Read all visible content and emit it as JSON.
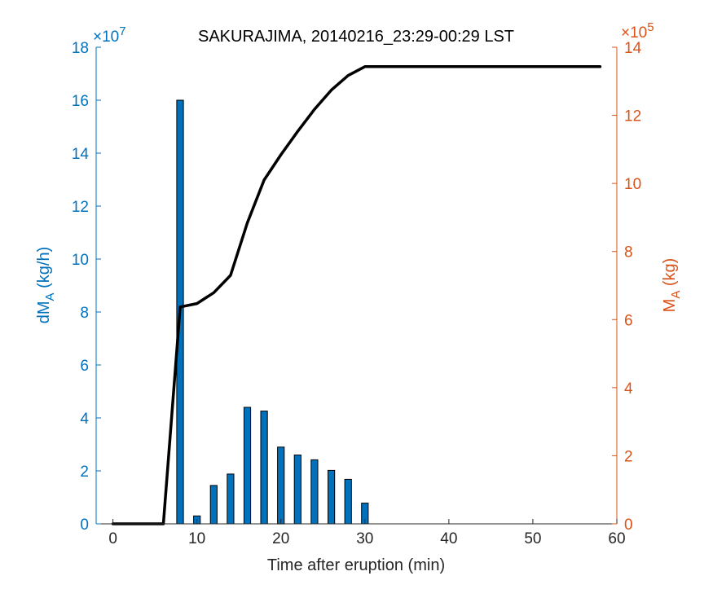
{
  "colors": {
    "left_axis": "#0072BD",
    "right_axis": "#D95319",
    "bars": "#0072BD",
    "line": "#000000"
  },
  "chart_data": {
    "type": "bar",
    "title": "SAKURAJIMA, 20140216_23:29-00:29 LST",
    "xlabel": "Time after eruption (min)",
    "ylabel_left": {
      "main": "dM",
      "sub": "A",
      "unit": " (kg/h)"
    },
    "ylabel_right": {
      "main": "M",
      "sub": "A",
      "unit": " (kg)"
    },
    "left_exponent": {
      "prefix": "×10",
      "power": "7"
    },
    "right_exponent": {
      "prefix": "×10",
      "power": "5"
    },
    "xlim": [
      -2,
      60
    ],
    "ylim_left": [
      0,
      18
    ],
    "ylim_right": [
      0,
      14
    ],
    "xticks": [
      0,
      10,
      20,
      30,
      40,
      50,
      60
    ],
    "yticks_left": [
      0,
      2,
      4,
      6,
      8,
      10,
      12,
      14,
      16,
      18
    ],
    "yticks_right": [
      0,
      2,
      4,
      6,
      8,
      10,
      12,
      14
    ],
    "grid": false,
    "legend": "none",
    "bars": {
      "axis": "left",
      "x": [
        8,
        10,
        12,
        14,
        16,
        18,
        20,
        22,
        24,
        26,
        28,
        30
      ],
      "values": [
        16.0,
        0.3,
        1.45,
        1.88,
        4.4,
        4.26,
        2.9,
        2.6,
        2.42,
        2.02,
        1.68,
        0.78
      ]
    },
    "line": {
      "axis": "right",
      "x": [
        0,
        6,
        8,
        10,
        12,
        14,
        16,
        18,
        20,
        22,
        24,
        26,
        28,
        30,
        32,
        34,
        36,
        38,
        40,
        42,
        44,
        46,
        48,
        50,
        52,
        54,
        56,
        58
      ],
      "y": [
        0,
        0,
        6.37,
        6.47,
        6.79,
        7.3,
        8.84,
        10.1,
        10.84,
        11.53,
        12.18,
        12.74,
        13.17,
        13.43,
        13.43,
        13.43,
        13.43,
        13.43,
        13.43,
        13.43,
        13.43,
        13.43,
        13.43,
        13.43,
        13.43,
        13.43,
        13.43,
        13.43
      ]
    }
  }
}
